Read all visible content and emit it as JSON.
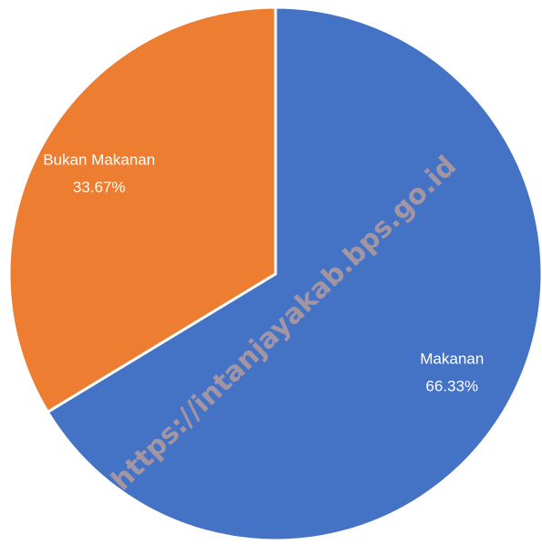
{
  "chart_data": {
    "type": "pie",
    "categories": [
      "Makanan",
      "Bukan Makanan"
    ],
    "values": [
      66.33,
      33.67
    ],
    "value_labels": [
      "66.33%",
      "33.67%"
    ],
    "colors": [
      "#4472c4",
      "#ed7d31"
    ],
    "watermark": "https://intanjayakab.bps.go.id"
  }
}
